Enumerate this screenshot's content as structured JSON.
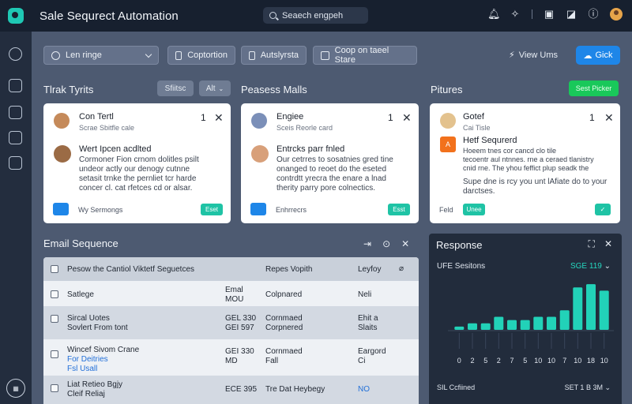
{
  "header": {
    "title": "Sale Sequrect Automation",
    "search_placeholder": "Seaech engpeh"
  },
  "toolbar": {
    "filter_label": "Len ringe",
    "btn1": "Coptortion",
    "btn2": "Autslyrsta",
    "btn3": "Coop on taeel Stare",
    "view_link": "View Ums",
    "add_label": "Gick"
  },
  "sections": {
    "col1_title": "Tlrak Tyrits",
    "chip1": "Sfiitsc",
    "chip2": "Alt",
    "col2_title": "Peasess Malls",
    "col3_title": "Pitures",
    "col3_button": "Sest Picker"
  },
  "cards": [
    {
      "name": "Con Tertl",
      "sub": "Scrae Sbitfle cale",
      "count": "1",
      "head": "Wert Ipcen acdlted",
      "body": [
        "Cormoner Fion crnom dolitles psilt",
        "undeor actly our denogy cutnne",
        "setasit trnke the pernliet tcr harde",
        "concer cl. cat rfetces cd or alsar."
      ],
      "foot": "Wy Sermongs",
      "btn": "Eset",
      "avatar_color": "#c58a5a"
    },
    {
      "name": "Engiee",
      "sub": "Sceis Reorle card",
      "count": "1",
      "head": "Entrcks parr fnled",
      "body": [
        "Our cetrres to sosatnies gred tine",
        "onanged to reoet do the eseted",
        "contrdtt yrecra the enare a lnad",
        "therity parry pore colnectics."
      ],
      "foot": "Enhrrecrs",
      "btn": "Esst",
      "avatar_color": "#7b8fb8"
    },
    {
      "name": "Gotef",
      "sub": "Cai Tisle",
      "count": "1",
      "head": "Hetf Sequrerd",
      "orange_tag": "A",
      "body": [
        "Hoeem tnes cor cancd clo tile",
        "tecoentr aul ntnnes. rne a ceraed tlanistry",
        "cnid rne. The yhou feffict plup seadk the"
      ],
      "link_line": [
        "Supe dne is rcy you unt lAfiate do to your",
        "darctses."
      ],
      "foot": "Feld",
      "btn": "Unee",
      "avatar_color": "#e3c28e"
    }
  ],
  "email": {
    "title": "Email Sequence",
    "header": {
      "c1": "Pesow the Cantiol Viktetf Seguetces",
      "c3": "Repes Vopith",
      "c4": "Leyfoy"
    },
    "rows": [
      {
        "c1": [
          "Satlege"
        ],
        "c2": [
          "Emal",
          "MOU"
        ],
        "c3": "Colpnared",
        "c4": [
          "Neli"
        ]
      },
      {
        "c1": [
          "Sircal Uotes",
          "Sovlert From tont"
        ],
        "c2": [
          "GEL 330",
          "GEI 597"
        ],
        "c3": "Cornmaed\nCorpnered",
        "c4": [
          "Ehit a",
          "Slaits"
        ]
      },
      {
        "c1": [
          "Wincef Sivom Crane"
        ],
        "c1_links": [
          "For Deitries",
          "Fsl Usall"
        ],
        "c2": [
          "GEI 330",
          "MD"
        ],
        "c3": "Cornmaed\nFall",
        "c4": [
          "Eargord",
          "Ci"
        ]
      },
      {
        "c1": [
          "Liat Retieo Bgjy",
          "Cleif Reliaj"
        ],
        "c2": [
          "ECE 395"
        ],
        "c3": "Tre Dat Heybegy",
        "c4": [
          "NO"
        ]
      }
    ]
  },
  "response": {
    "title": "Response",
    "subtitle": "UFE Sesitons",
    "value": "SGE 119",
    "foot_left": "SIL Ccfiined",
    "foot_right": "SET 1 B 3M"
  },
  "chart_data": {
    "type": "bar",
    "categories": [
      "0",
      "2",
      "5",
      "2",
      "7",
      "5",
      "10",
      "10",
      "7",
      "10",
      "18",
      "10"
    ],
    "values": [
      1,
      2,
      2,
      4,
      3,
      3,
      4,
      4,
      6,
      13,
      14,
      12
    ],
    "ylim": [
      0,
      15
    ],
    "color": "#22d2b8"
  },
  "colors": {
    "accent_blue": "#1e86e8",
    "accent_green": "#19c85a",
    "teal": "#22d2b8",
    "background": "#4d5a71"
  }
}
